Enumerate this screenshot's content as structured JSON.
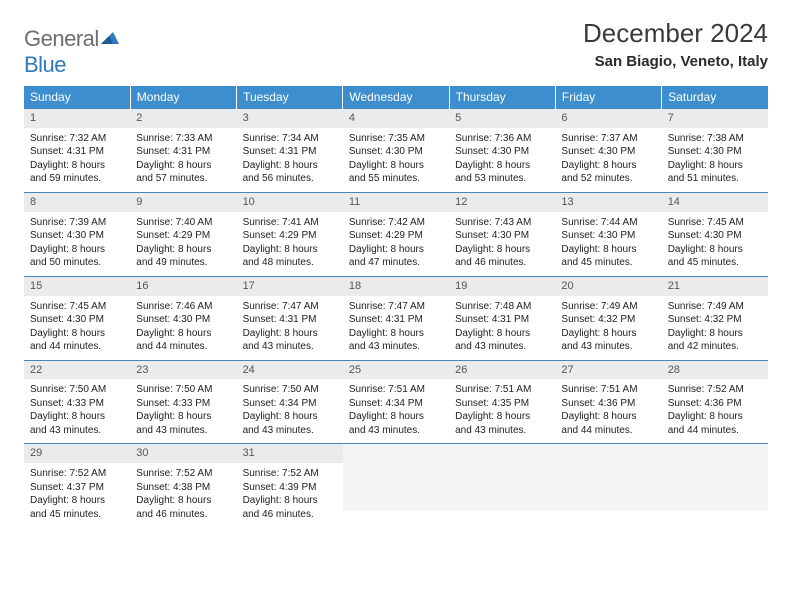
{
  "logo": {
    "word1": "General",
    "word2": "Blue"
  },
  "title": "December 2024",
  "location": "San Biagio, Veneto, Italy",
  "colors": {
    "header_bg": "#3d8ecf",
    "header_text": "#ffffff",
    "week_border": "#4a86b5",
    "daynum_bg": "#e9ebec",
    "logo_gray": "#6e6e6e",
    "logo_blue": "#2f7ac0"
  },
  "weekdays": [
    "Sunday",
    "Monday",
    "Tuesday",
    "Wednesday",
    "Thursday",
    "Friday",
    "Saturday"
  ],
  "weeks": [
    [
      {
        "num": "1",
        "sunrise": "Sunrise: 7:32 AM",
        "sunset": "Sunset: 4:31 PM",
        "day1": "Daylight: 8 hours",
        "day2": "and 59 minutes."
      },
      {
        "num": "2",
        "sunrise": "Sunrise: 7:33 AM",
        "sunset": "Sunset: 4:31 PM",
        "day1": "Daylight: 8 hours",
        "day2": "and 57 minutes."
      },
      {
        "num": "3",
        "sunrise": "Sunrise: 7:34 AM",
        "sunset": "Sunset: 4:31 PM",
        "day1": "Daylight: 8 hours",
        "day2": "and 56 minutes."
      },
      {
        "num": "4",
        "sunrise": "Sunrise: 7:35 AM",
        "sunset": "Sunset: 4:30 PM",
        "day1": "Daylight: 8 hours",
        "day2": "and 55 minutes."
      },
      {
        "num": "5",
        "sunrise": "Sunrise: 7:36 AM",
        "sunset": "Sunset: 4:30 PM",
        "day1": "Daylight: 8 hours",
        "day2": "and 53 minutes."
      },
      {
        "num": "6",
        "sunrise": "Sunrise: 7:37 AM",
        "sunset": "Sunset: 4:30 PM",
        "day1": "Daylight: 8 hours",
        "day2": "and 52 minutes."
      },
      {
        "num": "7",
        "sunrise": "Sunrise: 7:38 AM",
        "sunset": "Sunset: 4:30 PM",
        "day1": "Daylight: 8 hours",
        "day2": "and 51 minutes."
      }
    ],
    [
      {
        "num": "8",
        "sunrise": "Sunrise: 7:39 AM",
        "sunset": "Sunset: 4:30 PM",
        "day1": "Daylight: 8 hours",
        "day2": "and 50 minutes."
      },
      {
        "num": "9",
        "sunrise": "Sunrise: 7:40 AM",
        "sunset": "Sunset: 4:29 PM",
        "day1": "Daylight: 8 hours",
        "day2": "and 49 minutes."
      },
      {
        "num": "10",
        "sunrise": "Sunrise: 7:41 AM",
        "sunset": "Sunset: 4:29 PM",
        "day1": "Daylight: 8 hours",
        "day2": "and 48 minutes."
      },
      {
        "num": "11",
        "sunrise": "Sunrise: 7:42 AM",
        "sunset": "Sunset: 4:29 PM",
        "day1": "Daylight: 8 hours",
        "day2": "and 47 minutes."
      },
      {
        "num": "12",
        "sunrise": "Sunrise: 7:43 AM",
        "sunset": "Sunset: 4:30 PM",
        "day1": "Daylight: 8 hours",
        "day2": "and 46 minutes."
      },
      {
        "num": "13",
        "sunrise": "Sunrise: 7:44 AM",
        "sunset": "Sunset: 4:30 PM",
        "day1": "Daylight: 8 hours",
        "day2": "and 45 minutes."
      },
      {
        "num": "14",
        "sunrise": "Sunrise: 7:45 AM",
        "sunset": "Sunset: 4:30 PM",
        "day1": "Daylight: 8 hours",
        "day2": "and 45 minutes."
      }
    ],
    [
      {
        "num": "15",
        "sunrise": "Sunrise: 7:45 AM",
        "sunset": "Sunset: 4:30 PM",
        "day1": "Daylight: 8 hours",
        "day2": "and 44 minutes."
      },
      {
        "num": "16",
        "sunrise": "Sunrise: 7:46 AM",
        "sunset": "Sunset: 4:30 PM",
        "day1": "Daylight: 8 hours",
        "day2": "and 44 minutes."
      },
      {
        "num": "17",
        "sunrise": "Sunrise: 7:47 AM",
        "sunset": "Sunset: 4:31 PM",
        "day1": "Daylight: 8 hours",
        "day2": "and 43 minutes."
      },
      {
        "num": "18",
        "sunrise": "Sunrise: 7:47 AM",
        "sunset": "Sunset: 4:31 PM",
        "day1": "Daylight: 8 hours",
        "day2": "and 43 minutes."
      },
      {
        "num": "19",
        "sunrise": "Sunrise: 7:48 AM",
        "sunset": "Sunset: 4:31 PM",
        "day1": "Daylight: 8 hours",
        "day2": "and 43 minutes."
      },
      {
        "num": "20",
        "sunrise": "Sunrise: 7:49 AM",
        "sunset": "Sunset: 4:32 PM",
        "day1": "Daylight: 8 hours",
        "day2": "and 43 minutes."
      },
      {
        "num": "21",
        "sunrise": "Sunrise: 7:49 AM",
        "sunset": "Sunset: 4:32 PM",
        "day1": "Daylight: 8 hours",
        "day2": "and 42 minutes."
      }
    ],
    [
      {
        "num": "22",
        "sunrise": "Sunrise: 7:50 AM",
        "sunset": "Sunset: 4:33 PM",
        "day1": "Daylight: 8 hours",
        "day2": "and 43 minutes."
      },
      {
        "num": "23",
        "sunrise": "Sunrise: 7:50 AM",
        "sunset": "Sunset: 4:33 PM",
        "day1": "Daylight: 8 hours",
        "day2": "and 43 minutes."
      },
      {
        "num": "24",
        "sunrise": "Sunrise: 7:50 AM",
        "sunset": "Sunset: 4:34 PM",
        "day1": "Daylight: 8 hours",
        "day2": "and 43 minutes."
      },
      {
        "num": "25",
        "sunrise": "Sunrise: 7:51 AM",
        "sunset": "Sunset: 4:34 PM",
        "day1": "Daylight: 8 hours",
        "day2": "and 43 minutes."
      },
      {
        "num": "26",
        "sunrise": "Sunrise: 7:51 AM",
        "sunset": "Sunset: 4:35 PM",
        "day1": "Daylight: 8 hours",
        "day2": "and 43 minutes."
      },
      {
        "num": "27",
        "sunrise": "Sunrise: 7:51 AM",
        "sunset": "Sunset: 4:36 PM",
        "day1": "Daylight: 8 hours",
        "day2": "and 44 minutes."
      },
      {
        "num": "28",
        "sunrise": "Sunrise: 7:52 AM",
        "sunset": "Sunset: 4:36 PM",
        "day1": "Daylight: 8 hours",
        "day2": "and 44 minutes."
      }
    ],
    [
      {
        "num": "29",
        "sunrise": "Sunrise: 7:52 AM",
        "sunset": "Sunset: 4:37 PM",
        "day1": "Daylight: 8 hours",
        "day2": "and 45 minutes."
      },
      {
        "num": "30",
        "sunrise": "Sunrise: 7:52 AM",
        "sunset": "Sunset: 4:38 PM",
        "day1": "Daylight: 8 hours",
        "day2": "and 46 minutes."
      },
      {
        "num": "31",
        "sunrise": "Sunrise: 7:52 AM",
        "sunset": "Sunset: 4:39 PM",
        "day1": "Daylight: 8 hours",
        "day2": "and 46 minutes."
      },
      {
        "empty": true
      },
      {
        "empty": true
      },
      {
        "empty": true
      },
      {
        "empty": true
      }
    ]
  ]
}
